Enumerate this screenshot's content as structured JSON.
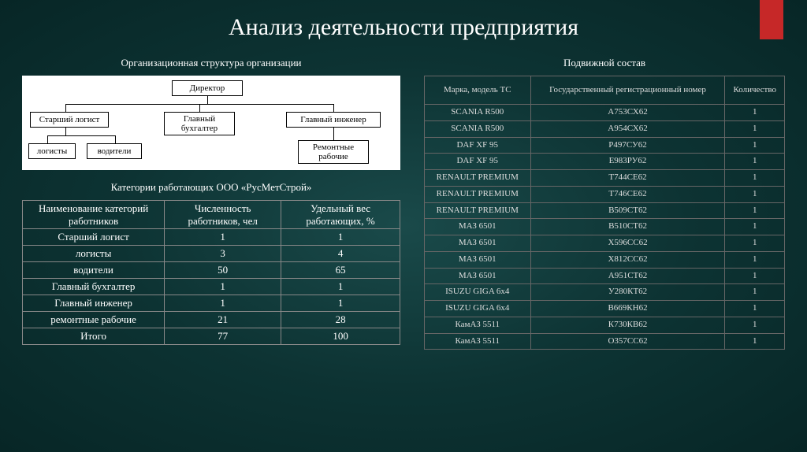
{
  "title": "Анализ деятельности предприятия",
  "left": {
    "org_title": "Организационная структура организации",
    "org": {
      "director": "Директор",
      "senior_logist": "Старший логист",
      "chief_accountant": "Главный бухгалтер",
      "chief_engineer": "Главный инженер",
      "logists": "логисты",
      "drivers": "водители",
      "repair_workers": "Ремонтные рабочие"
    },
    "emp_title": "Категории работающих ООО «РусМетСтрой»",
    "emp_headers": {
      "c1": "Наименование категорий работников",
      "c2": "Численность работников, чел",
      "c3": "Удельный вес работающих, %"
    },
    "emp_rows": [
      {
        "name": "Старший логист",
        "count": "1",
        "pct": "1"
      },
      {
        "name": "логисты",
        "count": "3",
        "pct": "4"
      },
      {
        "name": "водители",
        "count": "50",
        "pct": "65"
      },
      {
        "name": "Главный бухгалтер",
        "count": "1",
        "pct": "1"
      },
      {
        "name": "Главный инженер",
        "count": "1",
        "pct": "1"
      },
      {
        "name": "ремонтные рабочие",
        "count": "21",
        "pct": "28"
      },
      {
        "name": "Итого",
        "count": "77",
        "pct": "100"
      }
    ]
  },
  "right": {
    "fleet_title": "Подвижной состав",
    "fleet_headers": {
      "c1": "Марка, модель ТС",
      "c2": "Государственный регистрационный номер",
      "c3": "Количество"
    },
    "fleet_rows": [
      {
        "model": "SCANIA R500",
        "reg": "А753СХ62",
        "qty": "1"
      },
      {
        "model": "SCANIA R500",
        "reg": "А954СХ62",
        "qty": "1"
      },
      {
        "model": "DAF XF 95",
        "reg": "Р497СУ62",
        "qty": "1"
      },
      {
        "model": "DAF XF 95",
        "reg": "Е983РУ62",
        "qty": "1"
      },
      {
        "model": "RENAULT PREMIUM",
        "reg": "Т744СЕ62",
        "qty": "1"
      },
      {
        "model": "RENAULT PREMIUM",
        "reg": "Т746СЕ62",
        "qty": "1"
      },
      {
        "model": "RENAULT PREMIUM",
        "reg": "В509СТ62",
        "qty": "1"
      },
      {
        "model": "МАЗ 6501",
        "reg": "В510СТ62",
        "qty": "1"
      },
      {
        "model": "МАЗ 6501",
        "reg": "Х596СС62",
        "qty": "1"
      },
      {
        "model": "МАЗ 6501",
        "reg": "Х812СС62",
        "qty": "1"
      },
      {
        "model": "МАЗ 6501",
        "reg": "А951СТ62",
        "qty": "1"
      },
      {
        "model": "ISUZU GIGA 6х4",
        "reg": "У280КТ62",
        "qty": "1"
      },
      {
        "model": "ISUZU GIGA 6х4",
        "reg": "В669КН62",
        "qty": "1"
      },
      {
        "model": "КамАЗ 5511",
        "reg": "К730КВ62",
        "qty": "1"
      },
      {
        "model": "КамАЗ 5511",
        "reg": "О357СС62",
        "qty": "1"
      }
    ]
  }
}
